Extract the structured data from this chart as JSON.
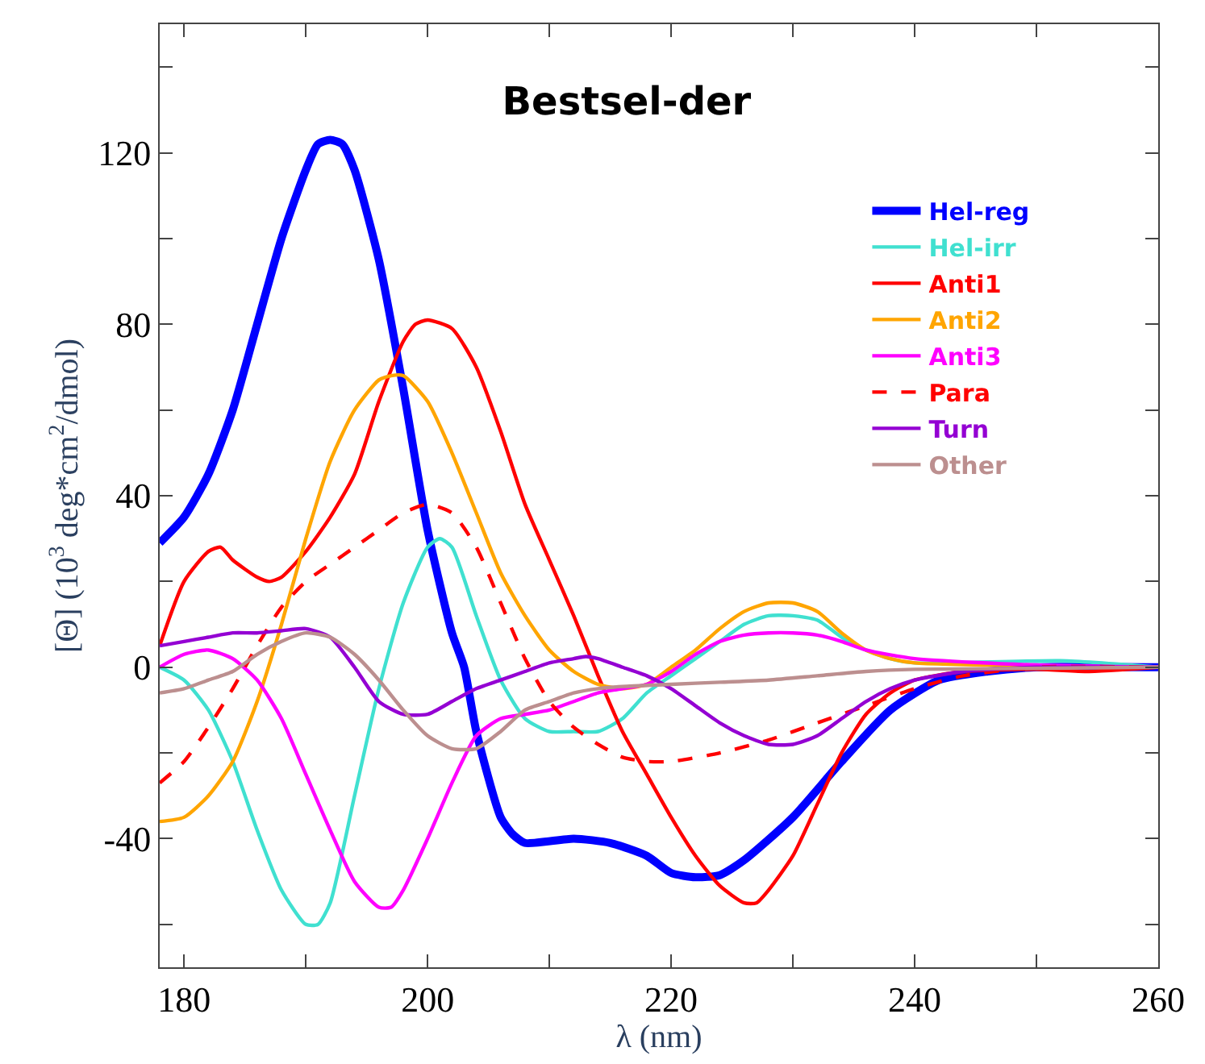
{
  "chart_data": {
    "type": "line",
    "title": "Bestsel-der",
    "xlabel": "λ (nm)",
    "ylabel": "[Θ] (10$^{3}$ deg*cm$^{2}$/dmol)",
    "xlim": [
      178,
      260
    ],
    "ylim": [
      -70,
      150
    ],
    "xticks": [
      180,
      {
        "value": 190,
        "label": null
      },
      200,
      {
        "value": 210,
        "label": null
      },
      220,
      {
        "value": 230,
        "label": null
      },
      240,
      {
        "value": 250,
        "label": null
      },
      260
    ],
    "yticks": [
      {
        "value": -60,
        "label": null
      },
      -40,
      {
        "value": -20,
        "label": null
      },
      0,
      {
        "value": 20,
        "label": null
      },
      40,
      {
        "value": 60,
        "label": null
      },
      80,
      {
        "value": 100,
        "label": null
      },
      120,
      {
        "value": 140,
        "label": null
      }
    ],
    "legend": "top right",
    "marker": "none",
    "series": [
      {
        "name": "Hel-reg",
        "color": "#0000ff",
        "x": [
          178,
          180,
          182,
          184,
          186,
          188,
          190,
          191,
          192,
          193,
          194,
          196,
          198,
          200,
          202,
          203,
          204,
          206,
          207,
          208,
          212,
          215,
          218,
          220,
          222,
          224,
          226,
          230,
          234,
          238,
          242,
          246,
          250,
          260
        ],
        "values": [
          29,
          35,
          45,
          60,
          80,
          100,
          116,
          122,
          123,
          122,
          116,
          95,
          65,
          32,
          8,
          0,
          -15,
          -35,
          -39,
          -41,
          -40,
          -41,
          -44,
          -48,
          -49,
          -48.5,
          -45,
          -35,
          -22,
          -10,
          -3,
          -1,
          0,
          0
        ]
      },
      {
        "name": "Hel-irr",
        "color": "#40e0d0",
        "x": [
          178,
          180,
          182,
          184,
          186,
          188,
          190,
          191,
          192,
          194,
          196,
          198,
          200,
          201,
          202,
          204,
          206,
          208,
          210,
          212,
          214,
          216,
          218,
          220,
          222,
          224,
          226,
          228,
          230,
          232,
          234,
          236,
          238,
          240,
          252,
          260
        ],
        "values": [
          0,
          -3,
          -10,
          -22,
          -38,
          -52,
          -60,
          -60,
          -55,
          -30,
          -5,
          15,
          28,
          30,
          28,
          12,
          -3,
          -12,
          -15,
          -15,
          -15,
          -12,
          -6,
          -2,
          2,
          6,
          10,
          12,
          12,
          11,
          7,
          4,
          2,
          1,
          1.5,
          0
        ]
      },
      {
        "name": "Anti1",
        "color": "#ff0000",
        "x": [
          178,
          180,
          182,
          183,
          184,
          186,
          187,
          188,
          190,
          192,
          194,
          196,
          198,
          199,
          200,
          202,
          204,
          206,
          208,
          210,
          212,
          214,
          216,
          218,
          220,
          222,
          224,
          226,
          227,
          228,
          230,
          232,
          234,
          236,
          238,
          240,
          244,
          250,
          254,
          260
        ],
        "values": [
          5,
          20,
          27,
          28,
          25,
          21,
          20,
          21,
          27,
          35,
          45,
          62,
          76,
          80,
          81,
          79,
          70,
          55,
          38,
          25,
          12,
          -2,
          -15,
          -25,
          -35,
          -44,
          -51,
          -55,
          -55,
          -52,
          -44,
          -32,
          -20,
          -11,
          -6,
          -3,
          -1,
          -0.5,
          -1,
          0
        ]
      },
      {
        "name": "Anti2",
        "color": "#ffa500",
        "x": [
          178,
          180,
          182,
          184,
          186,
          188,
          190,
          192,
          194,
          196,
          197,
          198,
          200,
          202,
          204,
          206,
          208,
          210,
          212,
          214,
          216,
          218,
          220,
          222,
          224,
          226,
          228,
          230,
          232,
          234,
          236,
          238,
          240,
          260
        ],
        "values": [
          -36,
          -35,
          -30,
          -22,
          -8,
          10,
          30,
          48,
          60,
          67,
          68,
          68,
          62,
          50,
          36,
          22,
          12,
          4,
          -1,
          -4,
          -5,
          -4,
          0,
          4,
          9,
          13,
          15,
          15,
          13,
          8,
          4,
          2,
          1,
          0
        ]
      },
      {
        "name": "Anti3",
        "color": "#ff00ff",
        "x": [
          178,
          180,
          182,
          184,
          186,
          188,
          190,
          192,
          194,
          196,
          197,
          198,
          200,
          202,
          204,
          206,
          208,
          210,
          212,
          214,
          216,
          218,
          220,
          222,
          224,
          226,
          228,
          230,
          232,
          234,
          236,
          240,
          250,
          260
        ],
        "values": [
          0,
          3,
          4,
          2,
          -3,
          -12,
          -25,
          -38,
          -50,
          -56,
          -56,
          -52,
          -40,
          -27,
          -16,
          -12,
          -11,
          -10,
          -8,
          -6,
          -5,
          -4,
          -1,
          3,
          6,
          7.5,
          8,
          8,
          7.5,
          6,
          4,
          2,
          0.5,
          0
        ]
      },
      {
        "name": "Para",
        "color": "#ff0000",
        "line_style": "dashed",
        "x": [
          178,
          180,
          182,
          184,
          186,
          188,
          190,
          192,
          194,
          196,
          198,
          200,
          202,
          204,
          206,
          208,
          210,
          212,
          214,
          216,
          218,
          220,
          224,
          228,
          232,
          236,
          240,
          244,
          250,
          260
        ],
        "values": [
          -27,
          -22,
          -14,
          -5,
          5,
          14,
          20,
          24,
          28,
          32,
          36,
          38,
          36,
          28,
          15,
          2,
          -8,
          -14,
          -18,
          -21,
          -22,
          -22,
          -20,
          -17,
          -13,
          -9,
          -5,
          -2,
          0,
          0
        ]
      },
      {
        "name": "Turn",
        "color": "#9400d3",
        "x": [
          178,
          180,
          182,
          184,
          186,
          188,
          190,
          192,
          194,
          196,
          198,
          200,
          202,
          204,
          206,
          208,
          210,
          212,
          213,
          214,
          216,
          218,
          220,
          222,
          224,
          226,
          228,
          230,
          232,
          234,
          236,
          238,
          240,
          244,
          250,
          260
        ],
        "values": [
          5,
          6,
          7,
          8,
          8,
          8.5,
          9,
          7,
          0,
          -8,
          -11,
          -11,
          -8,
          -5,
          -3,
          -1,
          1,
          2,
          2.5,
          2,
          0,
          -2,
          -5,
          -9,
          -13,
          -16,
          -18,
          -18,
          -16,
          -12,
          -8,
          -5,
          -3,
          -1,
          0,
          0
        ]
      },
      {
        "name": "Other",
        "color": "#bc8f8f",
        "x": [
          178,
          180,
          182,
          184,
          186,
          188,
          190,
          192,
          194,
          196,
          198,
          200,
          202,
          204,
          206,
          208,
          210,
          212,
          214,
          216,
          220,
          224,
          228,
          232,
          236,
          240,
          260
        ],
        "values": [
          -6,
          -5,
          -3,
          -1,
          3,
          6,
          8,
          7,
          3,
          -3,
          -10,
          -16,
          -19,
          -19,
          -15,
          -10,
          -8,
          -6,
          -5,
          -4.5,
          -4,
          -3.5,
          -3,
          -2,
          -1,
          -0.5,
          0
        ]
      }
    ]
  }
}
